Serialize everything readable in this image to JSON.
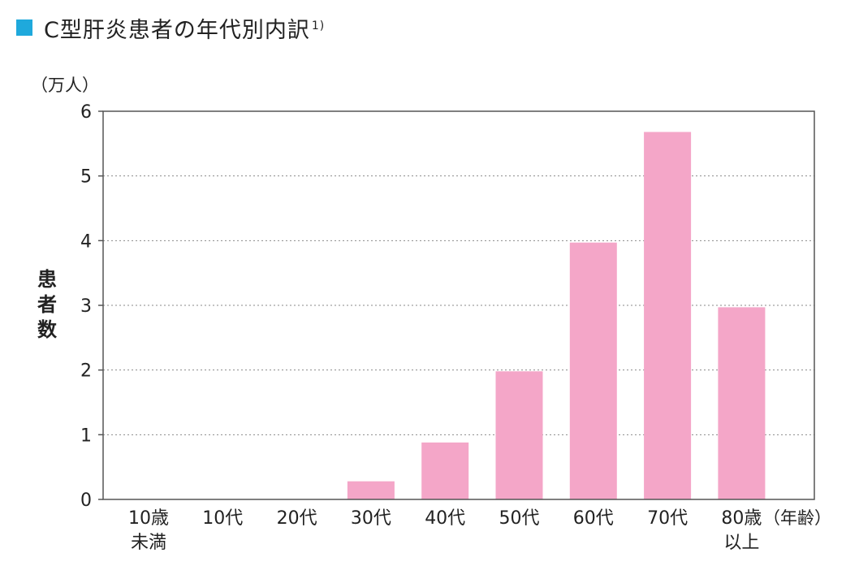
{
  "header": {
    "title": "C型肝炎患者の年代別内訳",
    "footnote": "1)",
    "marker_color": "#1fa9dc"
  },
  "chart_data": {
    "type": "bar",
    "title": "C型肝炎患者の年代別内訳",
    "ylabel": "患者数",
    "yunit": "（万人）",
    "xlabel": "（年齢）",
    "categories": [
      "10歳\n未満",
      "10代",
      "20代",
      "30代",
      "40代",
      "50代",
      "60代",
      "70代",
      "80歳\n以上"
    ],
    "values": [
      0,
      0,
      0,
      0.28,
      0.88,
      1.98,
      3.97,
      5.68,
      2.97
    ],
    "yticks": [
      0,
      1,
      2,
      3,
      4,
      5,
      6
    ],
    "ylim": [
      0,
      6
    ],
    "grid": true,
    "grid_style": "dotted",
    "bar_color": "#f4a6c8",
    "frame_color": "#555555"
  }
}
